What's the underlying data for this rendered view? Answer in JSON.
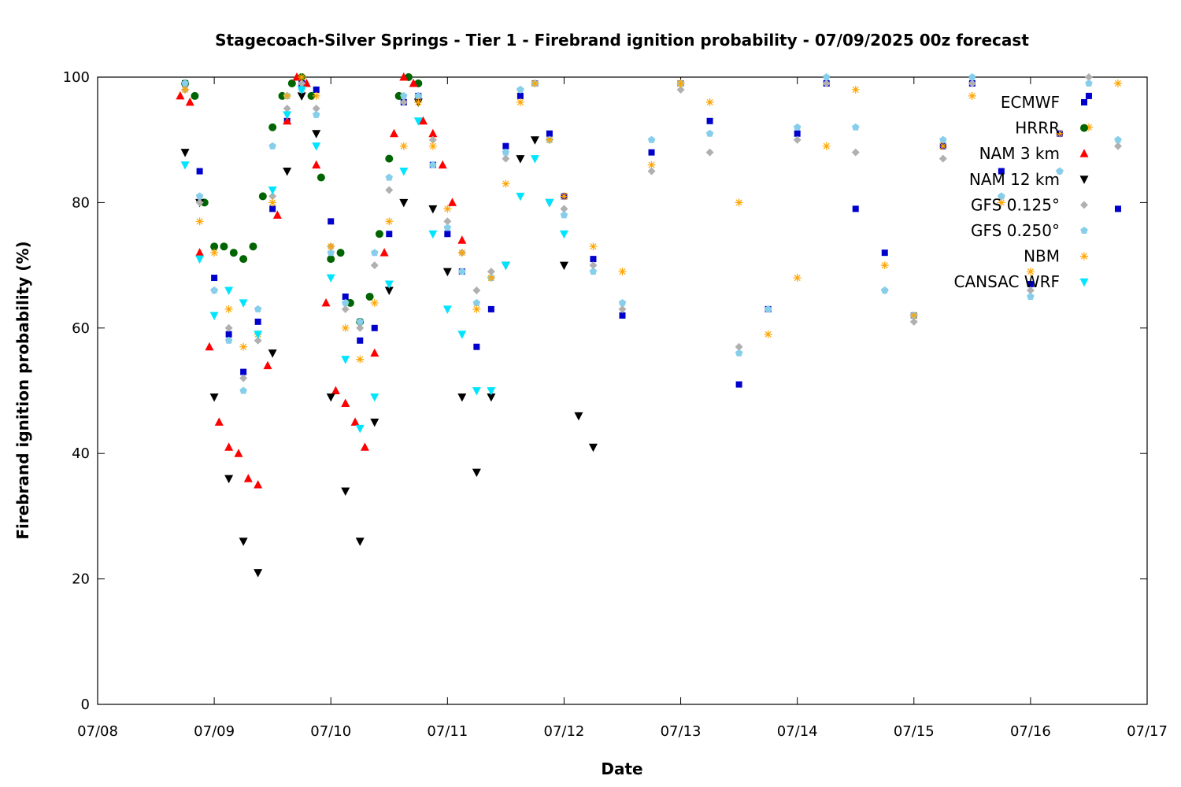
{
  "chart_data": {
    "type": "scatter",
    "title": "Stagecoach-Silver Springs - Tier 1 - Firebrand ignition probability - 07/09/2025 00z forecast",
    "xlabel": "Date",
    "ylabel": "Firebrand ignition probability (%)",
    "xlim": [
      "07/08",
      "07/17"
    ],
    "ylim": [
      0,
      100
    ],
    "x_ticks": [
      "07/08",
      "07/09",
      "07/10",
      "07/11",
      "07/12",
      "07/13",
      "07/14",
      "07/15",
      "07/16",
      "07/17"
    ],
    "y_ticks": [
      0,
      20,
      40,
      60,
      80,
      100
    ],
    "grid": false,
    "legend_position": "top-right",
    "series": [
      {
        "name": "ECMWF",
        "marker": "square",
        "color": "#0000cc",
        "x": [
          "07/08 18:00",
          "07/08 21:00",
          "07/09 00:00",
          "07/09 03:00",
          "07/09 06:00",
          "07/09 09:00",
          "07/09 12:00",
          "07/09 15:00",
          "07/09 18:00",
          "07/09 21:00",
          "07/10 00:00",
          "07/10 03:00",
          "07/10 06:00",
          "07/10 09:00",
          "07/10 12:00",
          "07/10 15:00",
          "07/10 18:00",
          "07/10 21:00",
          "07/11 00:00",
          "07/11 03:00",
          "07/11 06:00",
          "07/11 09:00",
          "07/11 12:00",
          "07/11 15:00",
          "07/11 18:00",
          "07/11 21:00",
          "07/12 00:00",
          "07/12 06:00",
          "07/12 12:00",
          "07/12 18:00",
          "07/13 00:00",
          "07/13 06:00",
          "07/13 12:00",
          "07/13 18:00",
          "07/14 00:00",
          "07/14 06:00",
          "07/14 12:00",
          "07/14 18:00",
          "07/15 00:00",
          "07/15 06:00",
          "07/15 12:00",
          "07/15 18:00",
          "07/16 00:00",
          "07/16 06:00",
          "07/16 12:00",
          "07/16 18:00"
        ],
        "y": [
          99,
          85,
          68,
          59,
          53,
          61,
          79,
          93,
          99,
          98,
          77,
          65,
          58,
          60,
          75,
          96,
          97,
          86,
          75,
          69,
          57,
          63,
          89,
          97,
          99,
          91,
          81,
          71,
          62,
          88,
          99,
          93,
          51,
          63,
          91,
          99,
          79,
          72,
          62,
          89,
          99,
          85,
          67,
          91,
          97,
          79
        ]
      },
      {
        "name": "HRRR",
        "marker": "circle",
        "color": "#006400",
        "x": [
          "07/08 18:00",
          "07/08 20:00",
          "07/08 22:00",
          "07/09 00:00",
          "07/09 02:00",
          "07/09 04:00",
          "07/09 06:00",
          "07/09 08:00",
          "07/09 10:00",
          "07/09 12:00",
          "07/09 14:00",
          "07/09 16:00",
          "07/09 18:00",
          "07/09 20:00",
          "07/09 22:00",
          "07/10 00:00",
          "07/10 02:00",
          "07/10 04:00",
          "07/10 06:00",
          "07/10 08:00",
          "07/10 10:00",
          "07/10 12:00",
          "07/10 14:00",
          "07/10 16:00",
          "07/10 18:00"
        ],
        "y": [
          99,
          97,
          80,
          73,
          73,
          72,
          71,
          73,
          81,
          92,
          97,
          99,
          100,
          97,
          84,
          71,
          72,
          64,
          61,
          65,
          75,
          87,
          97,
          100,
          99
        ]
      },
      {
        "name": "NAM 3 km",
        "marker": "triangle",
        "color": "#ff0000",
        "x": [
          "07/08 17:00",
          "07/08 19:00",
          "07/08 21:00",
          "07/08 23:00",
          "07/09 01:00",
          "07/09 03:00",
          "07/09 05:00",
          "07/09 07:00",
          "07/09 09:00",
          "07/09 11:00",
          "07/09 13:00",
          "07/09 15:00",
          "07/09 17:00",
          "07/09 19:00",
          "07/09 21:00",
          "07/09 23:00",
          "07/10 01:00",
          "07/10 03:00",
          "07/10 05:00",
          "07/10 07:00",
          "07/10 09:00",
          "07/10 11:00",
          "07/10 13:00",
          "07/10 15:00",
          "07/10 17:00",
          "07/10 19:00",
          "07/10 21:00",
          "07/10 23:00",
          "07/11 01:00",
          "07/11 03:00"
        ],
        "y": [
          97,
          96,
          72,
          57,
          45,
          41,
          40,
          36,
          35,
          54,
          78,
          93,
          100,
          99,
          86,
          64,
          50,
          48,
          45,
          41,
          56,
          72,
          91,
          100,
          99,
          93,
          91,
          86,
          80,
          74
        ]
      },
      {
        "name": "NAM 12 km",
        "marker": "triangle-down",
        "color": "#000000",
        "x": [
          "07/08 18:00",
          "07/08 21:00",
          "07/09 00:00",
          "07/09 03:00",
          "07/09 06:00",
          "07/09 09:00",
          "07/09 12:00",
          "07/09 15:00",
          "07/09 18:00",
          "07/09 21:00",
          "07/10 00:00",
          "07/10 03:00",
          "07/10 06:00",
          "07/10 09:00",
          "07/10 12:00",
          "07/10 15:00",
          "07/10 18:00",
          "07/10 21:00",
          "07/11 00:00",
          "07/11 03:00",
          "07/11 06:00",
          "07/11 09:00",
          "07/11 12:00",
          "07/11 15:00",
          "07/11 18:00",
          "07/11 21:00",
          "07/12 00:00",
          "07/12 03:00",
          "07/12 06:00"
        ],
        "y": [
          88,
          80,
          49,
          36,
          26,
          21,
          56,
          85,
          97,
          91,
          49,
          34,
          26,
          45,
          66,
          80,
          96,
          79,
          69,
          49,
          37,
          49,
          70,
          87,
          90,
          80,
          70,
          46,
          41
        ]
      },
      {
        "name": "GFS 0.125°",
        "marker": "diamond",
        "color": "#b0b0b0",
        "x": [
          "07/08 18:00",
          "07/08 21:00",
          "07/09 00:00",
          "07/09 03:00",
          "07/09 06:00",
          "07/09 09:00",
          "07/09 12:00",
          "07/09 15:00",
          "07/09 18:00",
          "07/09 21:00",
          "07/10 00:00",
          "07/10 03:00",
          "07/10 06:00",
          "07/10 09:00",
          "07/10 12:00",
          "07/10 15:00",
          "07/10 18:00",
          "07/10 21:00",
          "07/11 00:00",
          "07/11 03:00",
          "07/11 06:00",
          "07/11 09:00",
          "07/11 12:00",
          "07/11 15:00",
          "07/11 18:00",
          "07/11 21:00",
          "07/12 00:00",
          "07/12 06:00",
          "07/12 12:00",
          "07/12 18:00",
          "07/13 00:00",
          "07/13 06:00",
          "07/13 12:00",
          "07/13 18:00",
          "07/14 00:00",
          "07/14 06:00",
          "07/14 12:00",
          "07/14 18:00",
          "07/15 00:00",
          "07/15 06:00",
          "07/15 12:00",
          "07/15 18:00",
          "07/16 00:00",
          "07/16 06:00",
          "07/16 12:00",
          "07/16 18:00"
        ],
        "y": [
          98,
          80,
          66,
          60,
          52,
          58,
          81,
          95,
          99,
          95,
          73,
          63,
          60,
          70,
          82,
          96,
          97,
          90,
          77,
          72,
          66,
          69,
          87,
          98,
          99,
          90,
          79,
          70,
          63,
          85,
          98,
          88,
          57,
          63,
          90,
          99,
          88,
          66,
          61,
          87,
          99,
          81,
          66,
          85,
          100,
          89
        ]
      },
      {
        "name": "GFS 0.250°",
        "marker": "pentagon",
        "color": "#87ceeb",
        "x": [
          "07/08 18:00",
          "07/08 21:00",
          "07/09 00:00",
          "07/09 03:00",
          "07/09 06:00",
          "07/09 09:00",
          "07/09 12:00",
          "07/09 15:00",
          "07/09 18:00",
          "07/09 21:00",
          "07/10 00:00",
          "07/10 03:00",
          "07/10 06:00",
          "07/10 09:00",
          "07/10 12:00",
          "07/10 15:00",
          "07/10 18:00",
          "07/10 21:00",
          "07/11 00:00",
          "07/11 03:00",
          "07/11 06:00",
          "07/11 09:00",
          "07/11 12:00",
          "07/11 15:00",
          "07/11 18:00",
          "07/11 21:00",
          "07/12 00:00",
          "07/12 06:00",
          "07/12 12:00",
          "07/12 18:00",
          "07/13 00:00",
          "07/13 06:00",
          "07/13 12:00",
          "07/13 18:00",
          "07/14 00:00",
          "07/14 06:00",
          "07/14 12:00",
          "07/14 18:00",
          "07/15 00:00",
          "07/15 06:00",
          "07/15 12:00",
          "07/15 18:00",
          "07/16 00:00",
          "07/16 06:00",
          "07/16 12:00",
          "07/16 18:00"
        ],
        "y": [
          99,
          81,
          66,
          58,
          50,
          63,
          89,
          97,
          98,
          94,
          72,
          64,
          61,
          72,
          84,
          97,
          97,
          86,
          76,
          69,
          64,
          68,
          88,
          98,
          99,
          90,
          78,
          69,
          64,
          90,
          99,
          91,
          56,
          63,
          92,
          100,
          92,
          66,
          62,
          90,
          100,
          81,
          65,
          85,
          99,
          90
        ]
      },
      {
        "name": "NBM",
        "marker": "asterisk",
        "color": "#ffa500",
        "x": [
          "07/08 18:00",
          "07/08 21:00",
          "07/09 00:00",
          "07/09 03:00",
          "07/09 06:00",
          "07/09 09:00",
          "07/09 12:00",
          "07/09 15:00",
          "07/09 18:00",
          "07/09 21:00",
          "07/10 00:00",
          "07/10 03:00",
          "07/10 06:00",
          "07/10 09:00",
          "07/10 12:00",
          "07/10 15:00",
          "07/10 18:00",
          "07/10 21:00",
          "07/11 00:00",
          "07/11 03:00",
          "07/11 06:00",
          "07/11 09:00",
          "07/11 12:00",
          "07/11 15:00",
          "07/11 18:00",
          "07/11 21:00",
          "07/12 00:00",
          "07/12 06:00",
          "07/12 12:00",
          "07/12 18:00",
          "07/13 00:00",
          "07/13 06:00",
          "07/13 12:00",
          "07/13 18:00",
          "07/14 00:00",
          "07/14 06:00",
          "07/14 12:00",
          "07/14 18:00",
          "07/15 00:00",
          "07/15 06:00",
          "07/15 12:00",
          "07/15 18:00",
          "07/16 00:00",
          "07/16 06:00",
          "07/16 12:00",
          "07/16 18:00"
        ],
        "y": [
          98,
          77,
          72,
          63,
          57,
          59,
          80,
          97,
          100,
          97,
          73,
          60,
          55,
          64,
          77,
          89,
          96,
          89,
          79,
          72,
          63,
          68,
          83,
          96,
          99,
          90,
          81,
          73,
          69,
          86,
          99,
          96,
          80,
          59,
          68,
          89,
          98,
          70,
          62,
          89,
          97,
          80,
          69,
          91,
          92,
          99
        ]
      },
      {
        "name": "CANSAC WRF",
        "marker": "triangle-down",
        "color": "#00e5ff",
        "x": [
          "07/08 18:00",
          "07/08 21:00",
          "07/09 00:00",
          "07/09 03:00",
          "07/09 06:00",
          "07/09 09:00",
          "07/09 12:00",
          "07/09 15:00",
          "07/09 18:00",
          "07/09 21:00",
          "07/10 00:00",
          "07/10 03:00",
          "07/10 06:00",
          "07/10 09:00",
          "07/10 12:00",
          "07/10 15:00",
          "07/10 18:00",
          "07/10 21:00",
          "07/11 00:00",
          "07/11 03:00",
          "07/11 06:00",
          "07/11 09:00",
          "07/11 12:00",
          "07/11 15:00",
          "07/11 18:00",
          "07/11 21:00",
          "07/12 00:00"
        ],
        "y": [
          86,
          71,
          62,
          66,
          64,
          59,
          82,
          94,
          98,
          89,
          68,
          55,
          44,
          49,
          67,
          85,
          93,
          75,
          63,
          59,
          50,
          50,
          70,
          81,
          87,
          80,
          75
        ]
      }
    ]
  }
}
